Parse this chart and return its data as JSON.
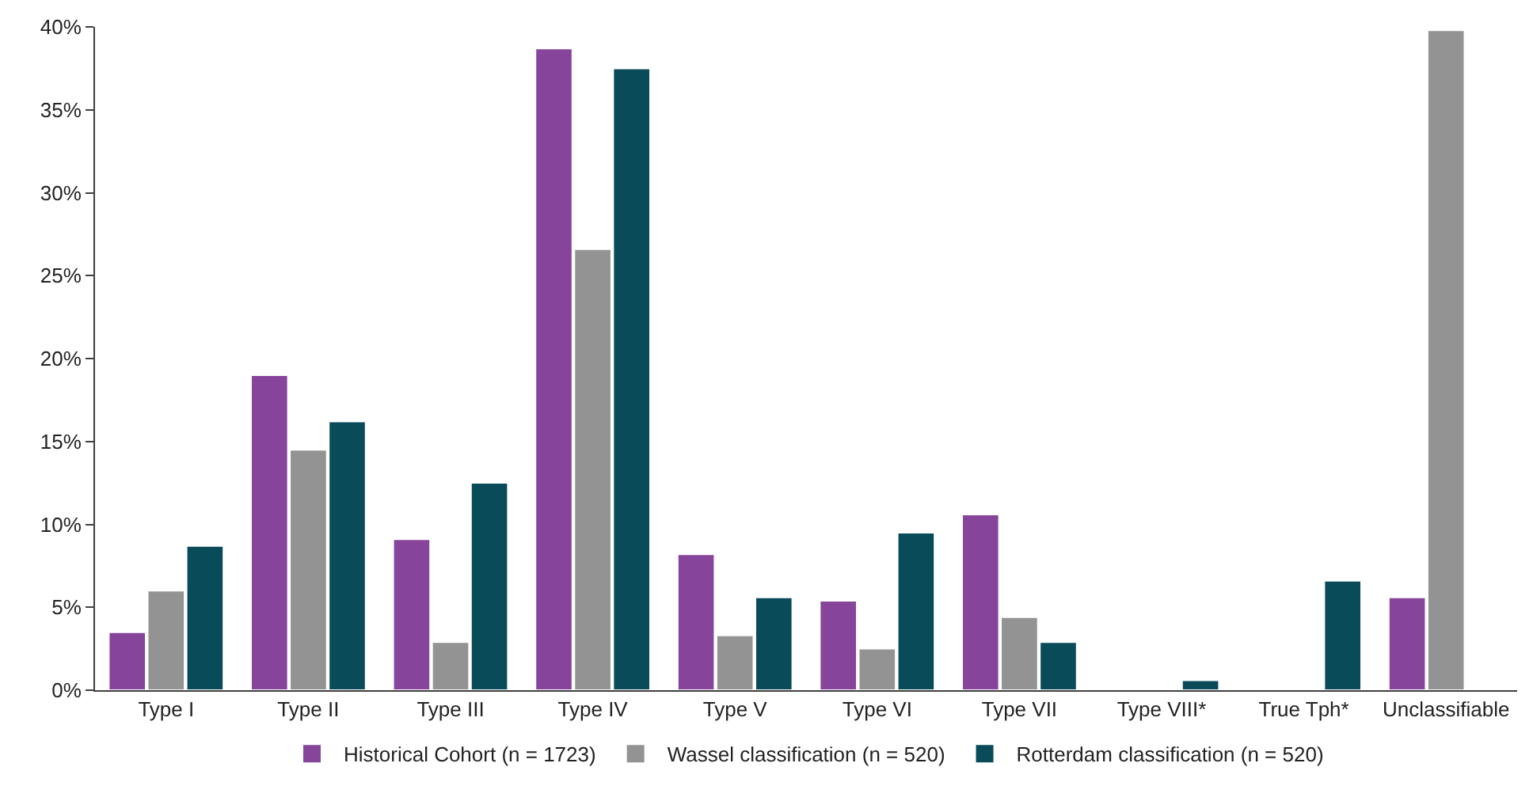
{
  "chart_data": {
    "type": "bar",
    "categories": [
      "Type I",
      "Type II",
      "Type III",
      "Type IV",
      "Type V",
      "Type VI",
      "Type VII",
      "Type VIII*",
      "True Tph*",
      "Unclassifiable"
    ],
    "series": [
      {
        "name": "Historical Cohort (n = 1723)",
        "color": "#86449a",
        "values": [
          3.5,
          19.0,
          9.1,
          38.7,
          8.2,
          5.4,
          10.6,
          null,
          null,
          5.6
        ]
      },
      {
        "name": "Wassel classification (n = 520)",
        "color": "#939393",
        "values": [
          6.0,
          14.5,
          2.9,
          26.6,
          3.3,
          2.5,
          4.4,
          null,
          null,
          39.8
        ]
      },
      {
        "name": "Rotterdam classification (n = 520)",
        "color": "#094b58",
        "values": [
          8.7,
          16.2,
          12.5,
          37.5,
          5.6,
          9.5,
          2.9,
          0.6,
          6.6,
          null
        ]
      }
    ],
    "ylim": [
      0,
      40
    ],
    "yticks": [
      {
        "value": 0,
        "label": "0%"
      },
      {
        "value": 5,
        "label": "5%"
      },
      {
        "value": 10,
        "label": "10%"
      },
      {
        "value": 15,
        "label": "15%"
      },
      {
        "value": 20,
        "label": "20%"
      },
      {
        "value": 25,
        "label": "25%"
      },
      {
        "value": 30,
        "label": "30%"
      },
      {
        "value": 35,
        "label": "35%"
      },
      {
        "value": 40,
        "label": "40%"
      }
    ],
    "legend": "bottom"
  }
}
